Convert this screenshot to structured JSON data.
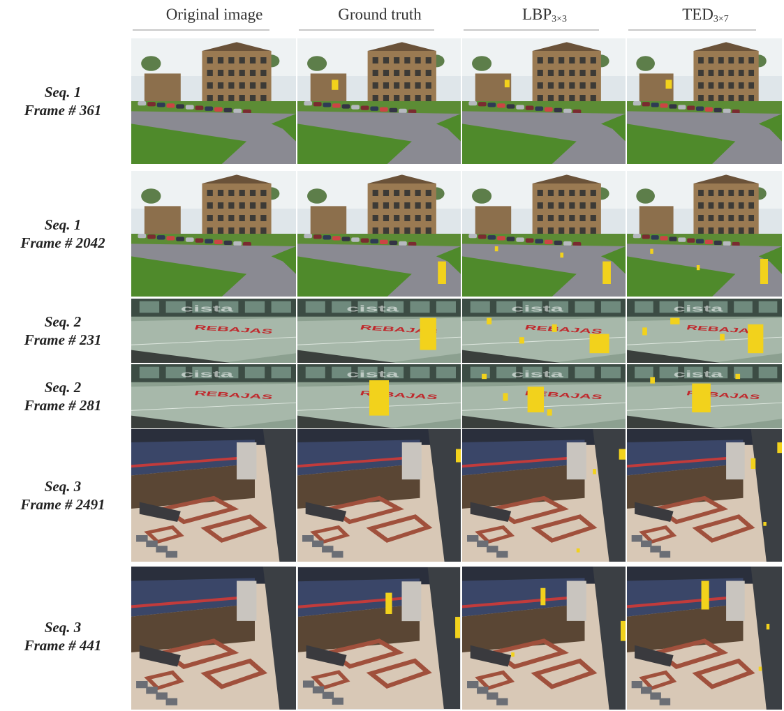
{
  "columns": [
    {
      "id": "original",
      "title": "Original image",
      "sub": ""
    },
    {
      "id": "ground",
      "title": "Ground truth",
      "sub": ""
    },
    {
      "id": "lbp",
      "title": "LBP",
      "sub": "3×3"
    },
    {
      "id": "ted",
      "title": "TED",
      "sub": "3×7"
    }
  ],
  "rows": [
    {
      "seq": "Seq. 1",
      "frame": "Frame # 361",
      "scene": "campus"
    },
    {
      "seq": "Seq. 1",
      "frame": "Frame # 2042",
      "scene": "campus"
    },
    {
      "seq": "Seq. 2",
      "frame": "Frame # 231",
      "scene": "mall"
    },
    {
      "seq": "Seq. 2",
      "frame": "Frame # 281",
      "scene": "mall"
    },
    {
      "seq": "Seq. 3",
      "frame": "Frame # 2491",
      "scene": "station"
    },
    {
      "seq": "Seq. 3",
      "frame": "Frame # 441",
      "scene": "station"
    }
  ],
  "scene_texts": {
    "mall_sign": "REBAJAS",
    "mall_header": "cista"
  },
  "colors": {
    "foreground_mask": "#f2d21c",
    "grass": "#4f8a2b",
    "road": "#8a8a92",
    "building": "#9a7a52",
    "floor": "#d8c8b6",
    "floor_pattern": "#a0503c",
    "train": "#3a4668"
  }
}
